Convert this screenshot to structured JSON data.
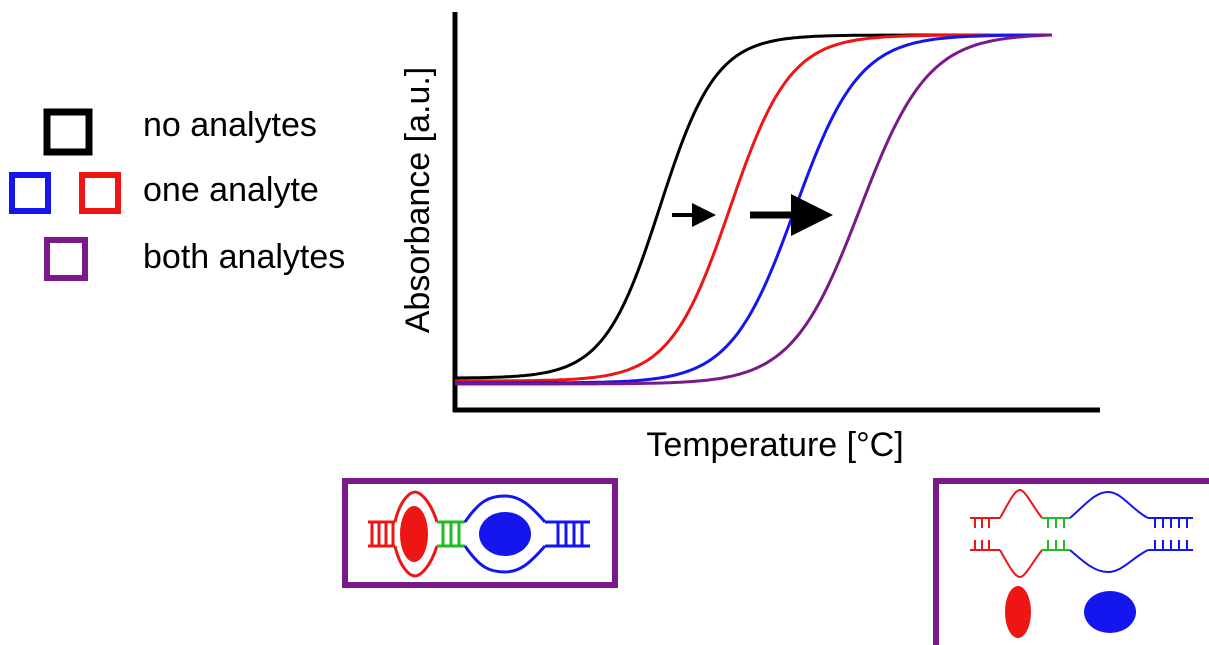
{
  "axes": {
    "x_label": "Temperature [°C]",
    "y_label": "Absorbance [a.u.]"
  },
  "legend": [
    {
      "label": "no analytes"
    },
    {
      "label": "one analyte"
    },
    {
      "label": "both analytes"
    }
  ]
}
